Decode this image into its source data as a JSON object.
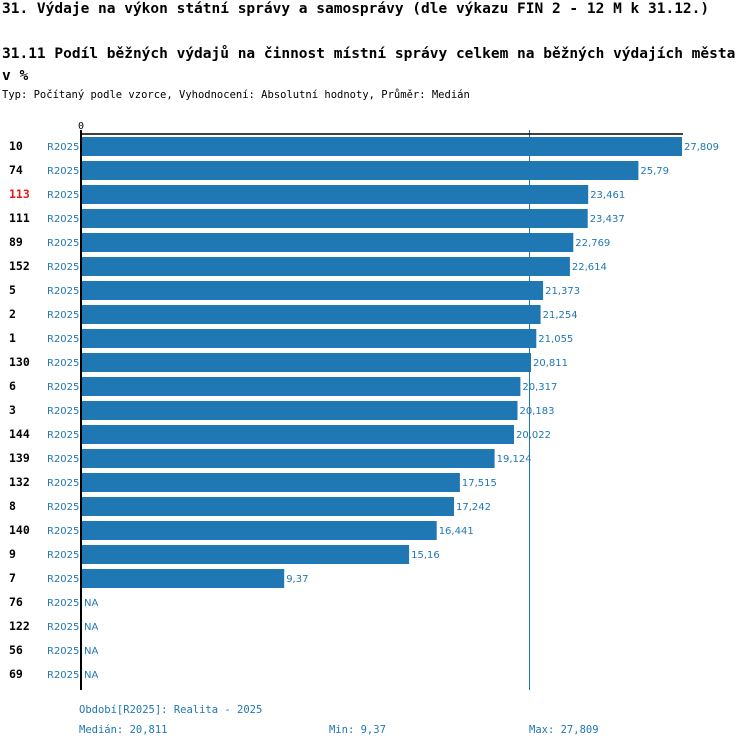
{
  "page_title": "31. Výdaje na výkon státní správy a samosprávy (dle výkazu FIN 2 - 12 M k 31.12.)",
  "chart_title": "31.11 Podíl běžných výdajů na činnost místní správy celkem na běžných výdajích města v %",
  "meta": "Typ: Počítaný podle vzorce, Vyhodnocení: Absolutní hodnoty, Průměr: Medián",
  "footer": {
    "period": "Období[R2025]: Realita - 2025",
    "median": "Medián: 20,811",
    "min": "Min: 9,37",
    "max": "Max: 27,809"
  },
  "chart_data": {
    "type": "bar",
    "orientation": "horizontal",
    "title": "31.11 Podíl běžných výdajů na činnost místní správy celkem na běžných výdajích města v %",
    "series_label": "R2025",
    "axis_zero_label": "0",
    "xlim": [
      0,
      27.809
    ],
    "median": 20.811,
    "highlight_category": "113",
    "categories": [
      "10",
      "74",
      "113",
      "111",
      "89",
      "152",
      "5",
      "2",
      "1",
      "130",
      "6",
      "3",
      "144",
      "139",
      "132",
      "8",
      "140",
      "9",
      "7",
      "76",
      "122",
      "56",
      "69"
    ],
    "values": [
      27.809,
      25.79,
      23.461,
      23.437,
      22.769,
      22.614,
      21.373,
      21.254,
      21.055,
      20.811,
      20.317,
      20.183,
      20.022,
      19.124,
      17.515,
      17.242,
      16.441,
      15.16,
      9.37,
      null,
      null,
      null,
      null
    ],
    "value_labels": [
      "27,809",
      "25,79",
      "23,461",
      "23,437",
      "22,769",
      "22,614",
      "21,373",
      "21,254",
      "21,055",
      "20,811",
      "20,317",
      "20,183",
      "20,022",
      "19,124",
      "17,515",
      "17,242",
      "16,441",
      "15,16",
      "9,37",
      "NA",
      "NA",
      "NA",
      "NA"
    ],
    "colors": {
      "bar": "#1f77b4",
      "highlight": "#e31a1c",
      "text": "#000000"
    }
  }
}
